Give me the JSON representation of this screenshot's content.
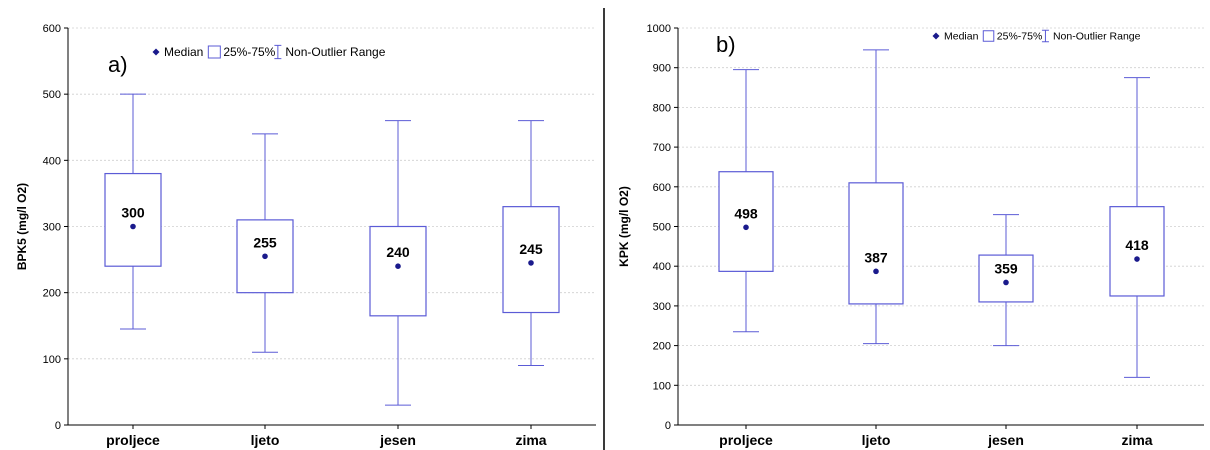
{
  "chart_data": [
    {
      "type": "box",
      "panel_label": "a)",
      "ylabel": "BPK5 (mg/l O2)",
      "ylim": [
        0,
        600
      ],
      "yticks": [
        0,
        100,
        200,
        300,
        400,
        500,
        600
      ],
      "grid": true,
      "legend": {
        "position": "top",
        "items": [
          "Median",
          "25%-75%",
          "Non-Outlier Range"
        ]
      },
      "categories": [
        "proljece",
        "ljeto",
        "jesen",
        "zima"
      ],
      "boxes": [
        {
          "min": 145,
          "q1": 240,
          "median": 300,
          "q3": 380,
          "max": 500,
          "label": "300"
        },
        {
          "min": 110,
          "q1": 200,
          "median": 255,
          "q3": 310,
          "max": 440,
          "label": "255"
        },
        {
          "min": 30,
          "q1": 165,
          "median": 240,
          "q3": 300,
          "max": 460,
          "label": "240"
        },
        {
          "min": 90,
          "q1": 170,
          "median": 245,
          "q3": 330,
          "max": 460,
          "label": "245"
        }
      ],
      "color": "#5b5bd6",
      "median_color": "#1a1a8c"
    },
    {
      "type": "box",
      "panel_label": "b)",
      "ylabel": "KPK (mg/l O2)",
      "ylim": [
        0,
        1000
      ],
      "yticks": [
        0,
        100,
        200,
        300,
        400,
        500,
        600,
        700,
        800,
        900,
        1000
      ],
      "grid": true,
      "legend": {
        "position": "top-right",
        "items": [
          "Median",
          "25%-75%",
          "Non-Outlier Range"
        ]
      },
      "categories": [
        "proljece",
        "ljeto",
        "jesen",
        "zima"
      ],
      "boxes": [
        {
          "min": 235,
          "q1": 387,
          "median": 498,
          "q3": 638,
          "max": 895,
          "label": "498"
        },
        {
          "min": 205,
          "q1": 305,
          "median": 387,
          "q3": 610,
          "max": 945,
          "label": "387"
        },
        {
          "min": 200,
          "q1": 310,
          "median": 359,
          "q3": 428,
          "max": 530,
          "label": "359"
        },
        {
          "min": 120,
          "q1": 325,
          "median": 418,
          "q3": 550,
          "max": 875,
          "label": "418"
        }
      ],
      "color": "#5b5bd6",
      "median_color": "#1a1a8c"
    }
  ]
}
